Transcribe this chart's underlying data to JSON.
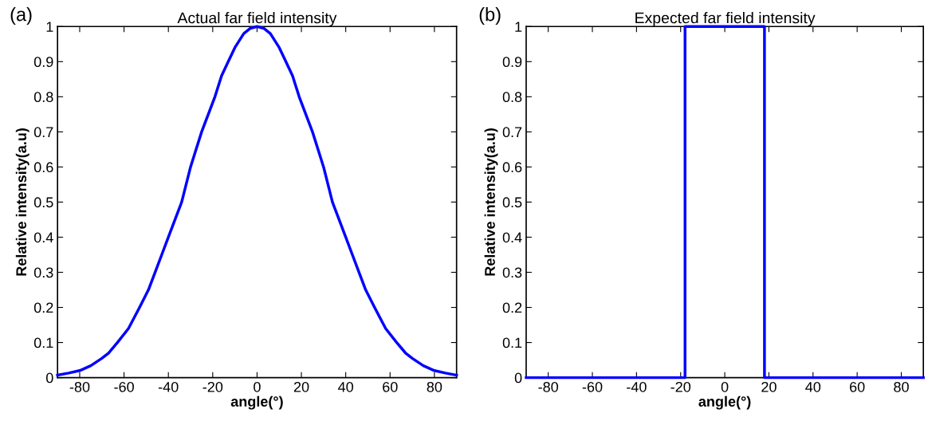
{
  "chart_data": [
    {
      "type": "line",
      "title": "Actual far field intensity",
      "xlabel": "angle(°)",
      "ylabel": "Relative intensity(a.u)",
      "annotations": [
        "(a)"
      ],
      "series": [
        {
          "color": "#0000ff",
          "x": [
            -90,
            -85,
            -80,
            -75,
            -70,
            -67,
            -63,
            -58,
            -53,
            -49,
            -46,
            -43,
            -40,
            -37,
            -34,
            -30,
            -28,
            -25,
            -22,
            -19,
            -16,
            -13,
            -10,
            -6,
            -3,
            0,
            3,
            6,
            10,
            13,
            16,
            19,
            22,
            25,
            28,
            30,
            34,
            37,
            40,
            43,
            46,
            49,
            53,
            58,
            63,
            67,
            70,
            75,
            80,
            85,
            90
          ],
          "values": [
            0.007,
            0.013,
            0.02,
            0.034,
            0.055,
            0.07,
            0.1,
            0.14,
            0.2,
            0.25,
            0.3,
            0.35,
            0.4,
            0.45,
            0.5,
            0.6,
            0.64,
            0.7,
            0.75,
            0.8,
            0.86,
            0.9,
            0.94,
            0.98,
            0.995,
            1,
            0.995,
            0.98,
            0.94,
            0.9,
            0.86,
            0.8,
            0.75,
            0.7,
            0.64,
            0.6,
            0.5,
            0.45,
            0.4,
            0.35,
            0.3,
            0.25,
            0.2,
            0.14,
            0.1,
            0.07,
            0.055,
            0.034,
            0.02,
            0.013,
            0.007
          ]
        }
      ],
      "xlim": [
        -90,
        90
      ],
      "xticks": [
        -80,
        -60,
        -40,
        -20,
        0,
        20,
        40,
        60,
        80
      ],
      "ylim": [
        0,
        1
      ],
      "yticks": [
        0,
        0.1,
        0.2,
        0.3,
        0.4,
        0.5,
        0.6,
        0.7,
        0.8,
        0.9,
        1
      ],
      "grid": false
    },
    {
      "type": "line",
      "title": "Expected far field intensity",
      "xlabel": "angle(°)",
      "ylabel": "Relative intensity(a.u)",
      "annotations": [
        "(b)"
      ],
      "series": [
        {
          "color": "#0000ff",
          "x": [
            -90,
            -18,
            -18,
            18,
            18,
            90
          ],
          "values": [
            0,
            0,
            1,
            1,
            0,
            0
          ]
        }
      ],
      "xlim": [
        -90,
        90
      ],
      "xticks": [
        -80,
        -60,
        -40,
        -20,
        0,
        20,
        40,
        60,
        80
      ],
      "ylim": [
        0,
        1
      ],
      "yticks": [
        0,
        0.1,
        0.2,
        0.3,
        0.4,
        0.5,
        0.6,
        0.7,
        0.8,
        0.9,
        1
      ],
      "grid": false
    }
  ]
}
